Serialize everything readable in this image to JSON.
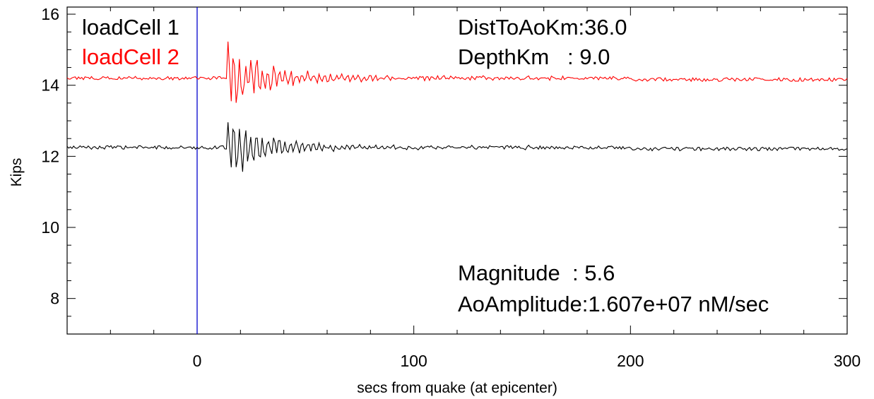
{
  "chart_data": {
    "type": "line",
    "title": "",
    "xlabel": "secs from quake (at epicenter)",
    "ylabel": "Kips",
    "xlim": [
      -60,
      300
    ],
    "ylim": [
      7,
      16.2
    ],
    "x_ticks": [
      0,
      100,
      200,
      300
    ],
    "x_tick_labels": [
      "0",
      "100",
      "200",
      "300"
    ],
    "y_ticks": [
      8,
      10,
      12,
      14,
      16
    ],
    "y_tick_labels": [
      "8",
      "10",
      "12",
      "14",
      "16"
    ],
    "grid": false,
    "legend_position": "top-left",
    "colors": {
      "series1": "#000000",
      "series2": "#ff0000",
      "marker": "#0000cc"
    },
    "vertical_marker_x": 0,
    "annotations": {
      "dist": "DistToAoKm:36.0",
      "depth": "DepthKm   : 9.0",
      "magnitude": "Magnitude  : 5.6",
      "amplitude": "AoAmplitude:1.607e+07 nM/sec"
    },
    "series": [
      {
        "name": "loadCell 1",
        "color": "#000000",
        "baseline": 12.25,
        "noise": 0.05,
        "quake_start": 14,
        "quake_peak": 0.75,
        "decay": 14
      },
      {
        "name": "loadCell 2",
        "color": "#ff0000",
        "baseline": 14.2,
        "noise": 0.05,
        "quake_start": 14,
        "quake_peak": 1.05,
        "decay": 14
      }
    ]
  }
}
